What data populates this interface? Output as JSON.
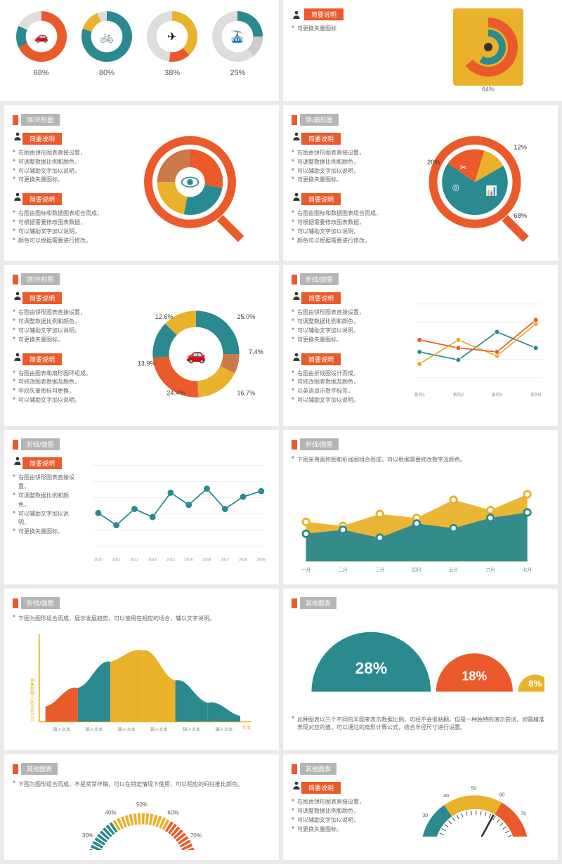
{
  "colors": {
    "orange": "#ea5a2b",
    "teal": "#2a8a8f",
    "yellow": "#eab12b",
    "gray": "#cccccc",
    "darkgray": "#555555",
    "bg": "#ffffff"
  },
  "row1_left": {
    "donuts": [
      {
        "icon": "car",
        "value": 68,
        "color": "#ea5a2b",
        "color2": "#2a8a8f"
      },
      {
        "icon": "bike",
        "value": 80,
        "color": "#2a8a8f",
        "color2": "#eab12b"
      },
      {
        "icon": "plane",
        "value": 38,
        "color": "#eab12b",
        "color2": "#ea5a2b"
      },
      {
        "icon": "cable",
        "value": 25,
        "color": "#2a8a8f",
        "color2": "#cccccc"
      }
    ]
  },
  "row1_right": {
    "bullets": [
      "可更换矢量图标",
      "",
      "",
      "",
      ""
    ],
    "donut": {
      "value": 64,
      "outer_color": "#ea5a2b",
      "inner_color": "#2a8a8f",
      "bg": "#eab12b"
    }
  },
  "card3": {
    "title": "饼/环形图",
    "badge": "简要说明",
    "bullets1": [
      "右图由饼形图表直接设置，",
      "可调整数据比例和颜色，",
      "可以辅助文字加以说明，",
      "可更换矢量图标。"
    ],
    "bullets2": [
      "右图由图标和数据图表组合而成，",
      "可根据需要修改图表数据，",
      "可以辅助文字加以说明，",
      "颜色可以根据需要进行修改。"
    ],
    "pie": {
      "slices": [
        {
          "v": 28,
          "c": "#ea5a2b"
        },
        {
          "v": 25,
          "c": "#2a8a8f"
        },
        {
          "v": 22,
          "c": "#eab12b"
        },
        {
          "v": 25,
          "c": "#cc7a4a"
        }
      ]
    }
  },
  "card4": {
    "title": "饼/扇形图",
    "badge": "简要说明",
    "bullets1": [
      "右图由饼形图表直接设置，",
      "可调整数据比例和颜色，",
      "可以辅助文字加以说明，",
      "可更换矢量图标。"
    ],
    "bullets2": [
      "右图由图标和数据图表组合而成，",
      "可根据需要修改图表数据，",
      "可以辅助文字加以说明，",
      "颜色可以根据需要进行修改。"
    ],
    "pie": {
      "slices": [
        {
          "v": 68,
          "c": "#2a8a8f",
          "label": "68%"
        },
        {
          "v": 20,
          "c": "#ea5a2b",
          "label": "20%"
        },
        {
          "v": 12,
          "c": "#eab12b",
          "label": "12%"
        }
      ]
    }
  },
  "card5": {
    "title": "饼/环形图",
    "badge": "简要说明",
    "bullets1": [
      "右图由饼形图表直接设置，",
      "可调整数据比例和颜色，",
      "可以辅助文字加以说明，",
      "可更换矢量图标。"
    ],
    "bullets2": [
      "右图由图表和扇形图环组成，",
      "可修改图表数据及颜色，",
      "中间矢量图标可更换，",
      "可以辅助文字加以说明。"
    ],
    "donut": {
      "slices": [
        {
          "v": 25.0,
          "c": "#2a8a8f"
        },
        {
          "v": 7.4,
          "c": "#cc7a4a"
        },
        {
          "v": 16.7,
          "c": "#eab12b"
        },
        {
          "v": 24.4,
          "c": "#ea5a2b"
        },
        {
          "v": 13.9,
          "c": "#2a8a8f"
        },
        {
          "v": 12.6,
          "c": "#eab12b"
        }
      ],
      "labels": [
        "25.0%",
        "7.4%",
        "16.7%",
        "24.4%",
        "13.9%",
        "12.6%"
      ]
    }
  },
  "card6": {
    "title": "折线/面图",
    "badge": "简要说明",
    "bullets1": [
      "右图由饼形图表直接设置，",
      "可调整数据比例和颜色，",
      "可以辅助文字加以说明，",
      "可更换矢量图标。"
    ],
    "bullets2": [
      "右图由折线图设计而成，",
      "可修改图表数据及颜色，",
      "以英语显示数字标签，",
      "可以辅助文字加以说明。"
    ],
    "lines": {
      "x": [
        "系列1",
        "系列2",
        "系列3",
        "系列4"
      ],
      "series": [
        {
          "c": "#2a8a8f",
          "pts": [
            40,
            30,
            65,
            45
          ]
        },
        {
          "c": "#eab12b",
          "pts": [
            25,
            55,
            35,
            75
          ]
        },
        {
          "c": "#ea5a2b",
          "pts": [
            55,
            45,
            40,
            80
          ]
        }
      ],
      "ylim": [
        0,
        100
      ]
    }
  },
  "card7": {
    "title": "折线/面图",
    "badge": "简要说明",
    "bullets": [
      "右图由饼形图表直接设置，",
      "可调整数据比例和颜色，",
      "可以辅助文字加以说明，",
      "可更换矢量图标。"
    ],
    "line": {
      "c": "#2a8a8f",
      "pts": [
        45,
        30,
        50,
        40,
        70,
        55,
        75,
        50,
        65,
        72
      ],
      "x": [
        "2010",
        "2011",
        "2012",
        "2013",
        "2014",
        "2015",
        "2016",
        "2017",
        "2018",
        "2019"
      ],
      "ylim": [
        0,
        100
      ]
    }
  },
  "card8": {
    "title": "折线/面图",
    "subtitle": "下图采用面积图和折线图组合而成，可以根据需要修改数字及颜色。",
    "areas": {
      "x": [
        "一月",
        "二月",
        "三月",
        "四月",
        "五月",
        "六月",
        "七月"
      ],
      "series": [
        {
          "c": "#eab12b",
          "pts": [
            50,
            45,
            60,
            55,
            78,
            65,
            85
          ]
        },
        {
          "c": "#2a8a8f",
          "pts": [
            35,
            40,
            30,
            48,
            42,
            55,
            62
          ]
        }
      ],
      "ylim": [
        0,
        100
      ]
    }
  },
  "card9": {
    "title": "折线/面图",
    "subtitle": "下图为图形组合而成，展示发展趋势，可以使用在相应的场合，辅以文字说明。",
    "ylabel": "销售数据人民币百万元",
    "xlabel": "年度",
    "x": [
      "输入文本",
      "输入文本",
      "输入文本",
      "输入文本",
      "输入文本",
      "输入文本"
    ],
    "bars": [
      {
        "v": 20,
        "c": "#ea5a2b"
      },
      {
        "v": 45,
        "c": "#2a8a8f"
      },
      {
        "v": 80,
        "c": "#eab12b"
      },
      {
        "v": 95,
        "c": "#eab12b"
      },
      {
        "v": 55,
        "c": "#2a8a8f"
      },
      {
        "v": 25,
        "c": "#2a8a8f"
      }
    ]
  },
  "card10": {
    "title": "其他图表",
    "semis": [
      {
        "v": 28,
        "c": "#2a8a8f"
      },
      {
        "v": 18,
        "c": "#ea5a2b"
      },
      {
        "v": 8,
        "c": "#eab12b"
      }
    ],
    "subtitle": "此种图表以三个不同的半圆来表示数据比例，可经不会很粘稠，但是一种独特的演示尝试，如需精准表现对应的值，可以通过的扇形计算公式，结合半径尺寸进行设置。"
  },
  "card11": {
    "title": "其他图表",
    "subtitle": "下图为图形组合而成，不是常常样稿，可以在特定情境下使用，可以相应的码柱推比颜色。",
    "gauge": {
      "ticks": [
        "20%",
        "30%",
        "40%",
        "50%",
        "60%",
        "70%",
        "80%"
      ],
      "segments": [
        {
          "c": "#2a8a8f"
        },
        {
          "c": "#eab12b"
        },
        {
          "c": "#ea5a2b"
        }
      ]
    }
  },
  "card12": {
    "title": "其他图表",
    "badge": "简要说明",
    "bullets": [
      "右图由饼形图表直接设置，",
      "可调整数据比例和颜色，",
      "可以辅助文字加以说明，",
      "可更换矢量图标。"
    ],
    "gauge": {
      "ticks": [
        "20",
        "30",
        "40",
        "50",
        "60",
        "70",
        "80"
      ],
      "segments": [
        {
          "c": "#2a8a8f"
        },
        {
          "c": "#eab12b"
        },
        {
          "c": "#ea5a2b"
        }
      ]
    }
  }
}
